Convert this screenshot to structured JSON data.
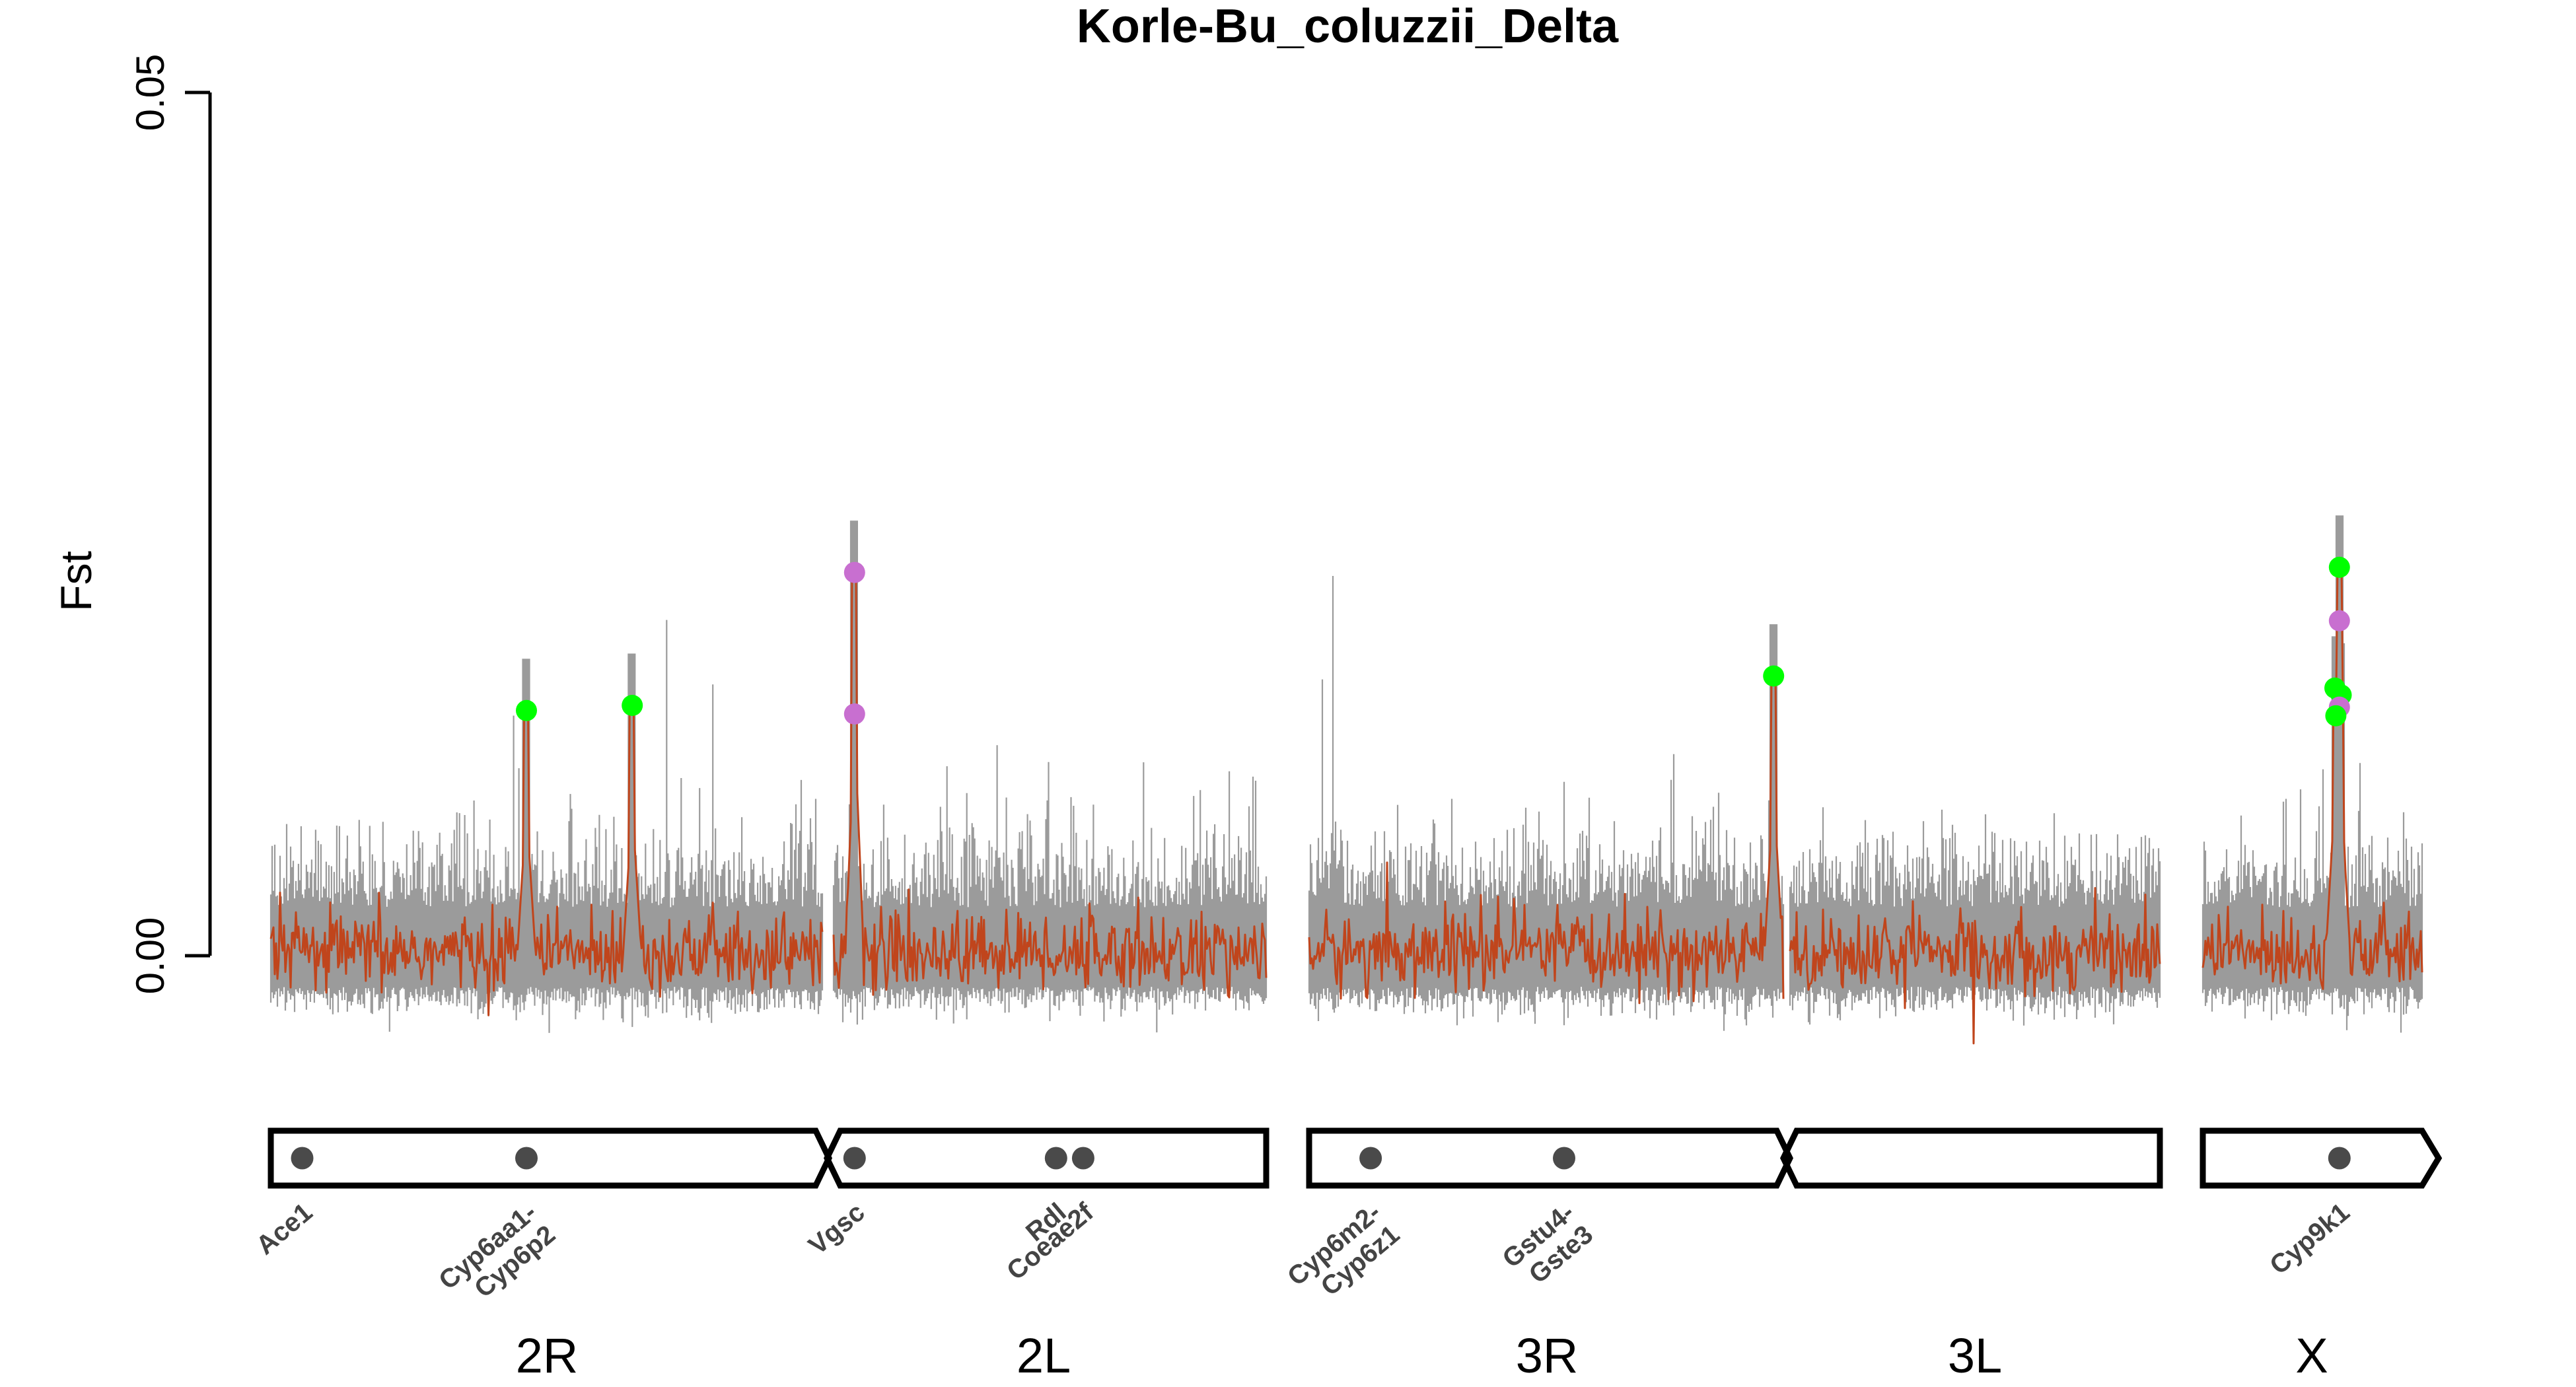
{
  "chart_data": {
    "type": "line",
    "title": "Korle-Bu_coluzzii_Delta",
    "ylabel": "Fst",
    "xlabel": "",
    "ylim": [
      0.0,
      0.05
    ],
    "yticks": [
      "0.00",
      "0.05"
    ],
    "colors": {
      "replicates": "#8a8a8a",
      "main_series": "#c0451c",
      "peak_green": "#00ff00",
      "peak_purple": "#c86fd0",
      "gene_dot": "#4a4a4a",
      "outline": "#000000"
    },
    "arms": [
      {
        "name": "2R",
        "length_mb": 61.5
      },
      {
        "name": "2L",
        "length_mb": 49.4
      },
      {
        "name": "3R",
        "length_mb": 53.2
      },
      {
        "name": "3L",
        "length_mb": 41.9
      },
      {
        "name": "X",
        "length_mb": 24.4
      }
    ],
    "peaks": [
      {
        "arm": "2R",
        "pos_mb": 28.5,
        "fst": 0.0142,
        "color": "green"
      },
      {
        "arm": "2R",
        "pos_mb": 40.3,
        "fst": 0.0145,
        "color": "green"
      },
      {
        "arm": "2L",
        "pos_mb": 2.4,
        "fst": 0.0222,
        "color": "purple"
      },
      {
        "arm": "2L",
        "pos_mb": 2.4,
        "fst": 0.014,
        "color": "purple"
      },
      {
        "arm": "3R",
        "pos_mb": 52.1,
        "fst": 0.0162,
        "color": "green"
      },
      {
        "arm": "X",
        "pos_mb": 15.2,
        "fst": 0.0225,
        "color": "green"
      },
      {
        "arm": "X",
        "pos_mb": 15.2,
        "fst": 0.0194,
        "color": "purple"
      },
      {
        "arm": "X",
        "pos_mb": 14.7,
        "fst": 0.0155,
        "color": "green"
      },
      {
        "arm": "X",
        "pos_mb": 15.4,
        "fst": 0.0151,
        "color": "green"
      },
      {
        "arm": "X",
        "pos_mb": 15.2,
        "fst": 0.0144,
        "color": "purple"
      },
      {
        "arm": "X",
        "pos_mb": 14.8,
        "fst": 0.0139,
        "color": "green"
      }
    ],
    "genes": [
      {
        "label": "Ace1",
        "arm": "2R",
        "pos_mb": 3.5
      },
      {
        "label": "Cyp6aa1-\nCyp6p2",
        "arm": "2R",
        "pos_mb": 28.5
      },
      {
        "label": "Vgsc",
        "arm": "2L",
        "pos_mb": 2.4
      },
      {
        "label": "Rdl",
        "arm": "2L",
        "pos_mb": 25.4
      },
      {
        "label": "Coeae2f",
        "arm": "2L",
        "pos_mb": 28.5
      },
      {
        "label": "Cyp6m2-\nCyp6z1",
        "arm": "3R",
        "pos_mb": 6.9
      },
      {
        "label": "Gstu4-\nGste3",
        "arm": "3R",
        "pos_mb": 28.6
      },
      {
        "label": "Cyp9k1",
        "arm": "X",
        "pos_mb": 15.2
      }
    ]
  }
}
